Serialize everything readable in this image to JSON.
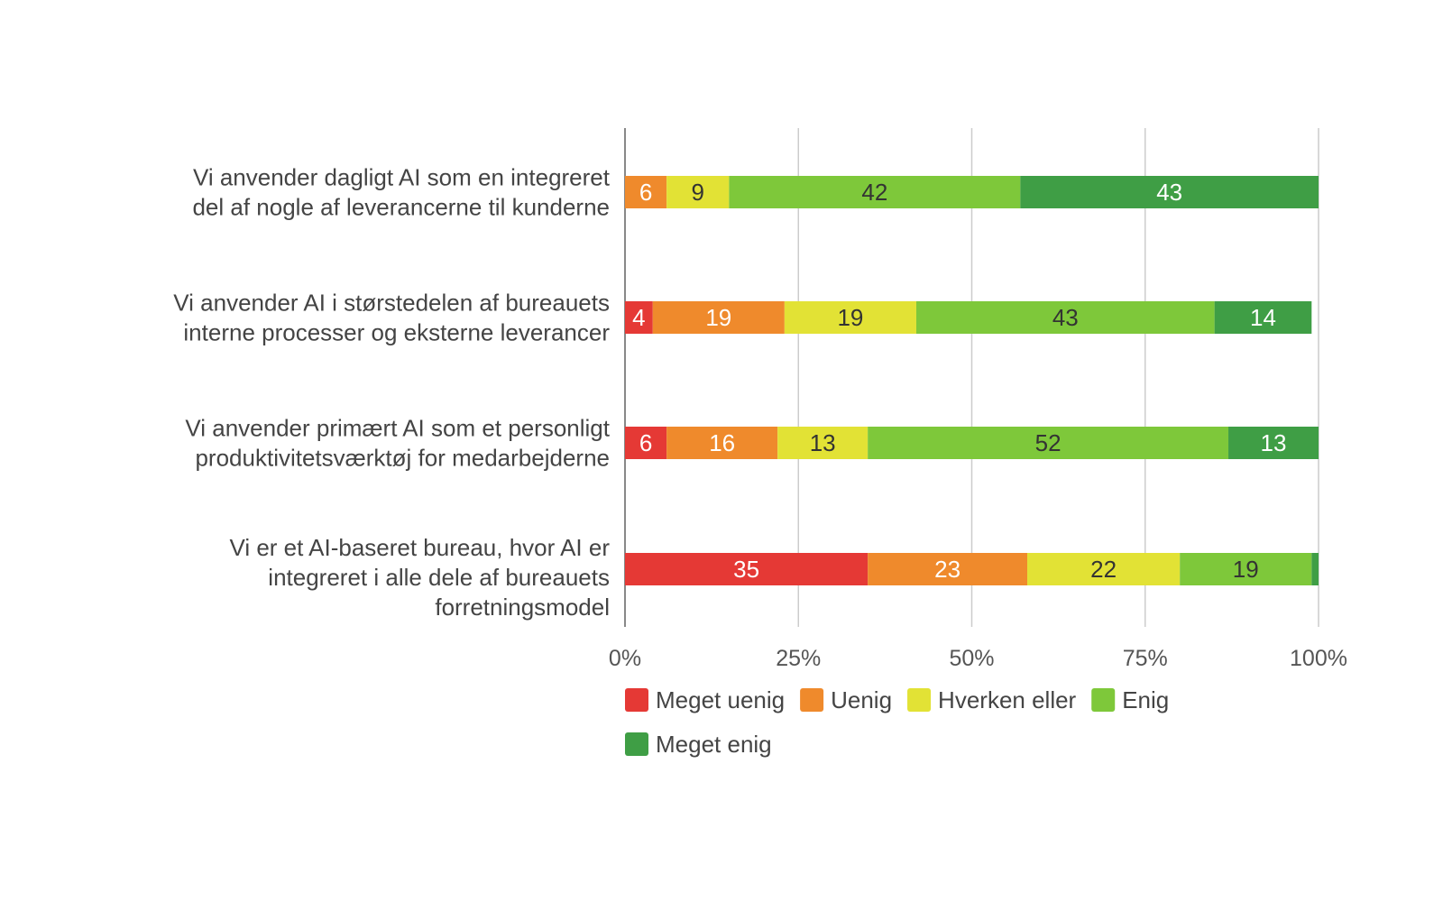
{
  "chart_data": {
    "type": "bar",
    "orientation": "horizontal",
    "stacked": true,
    "percent": true,
    "categories": [
      [
        "Vi anvender dagligt AI som en integreret",
        "del af nogle af leverancerne til kunderne"
      ],
      [
        "Vi anvender AI i størstedelen af bureauets",
        "interne processer og eksterne leverancer"
      ],
      [
        "Vi anvender primært AI som et personligt",
        "produktivitetsværktøj for medarbejderne"
      ],
      [
        "Vi er et AI-baseret bureau, hvor AI er",
        "integreret i alle dele af bureauets",
        "forretningsmodel"
      ]
    ],
    "series": [
      {
        "name": "Meget uenig",
        "color": "#e53935",
        "label_color": "#ffffff",
        "values": [
          0,
          4,
          6,
          35
        ]
      },
      {
        "name": "Uenig",
        "color": "#ef8a2c",
        "label_color": "#ffffff",
        "values": [
          6,
          19,
          16,
          23
        ]
      },
      {
        "name": "Hverken eller",
        "color": "#e2e235",
        "label_color": "#333333",
        "values": [
          9,
          19,
          13,
          22
        ]
      },
      {
        "name": "Enig",
        "color": "#7ec83a",
        "label_color": "#333333",
        "values": [
          42,
          43,
          52,
          19
        ]
      },
      {
        "name": "Meget enig",
        "color": "#3f9e45",
        "label_color": "#ffffff",
        "values": [
          43,
          14,
          13,
          1
        ]
      }
    ],
    "xlim": [
      0,
      100
    ],
    "xticks": [
      "0%",
      "25%",
      "50%",
      "75%",
      "100%"
    ],
    "grid": true,
    "legend_position": "bottom"
  }
}
